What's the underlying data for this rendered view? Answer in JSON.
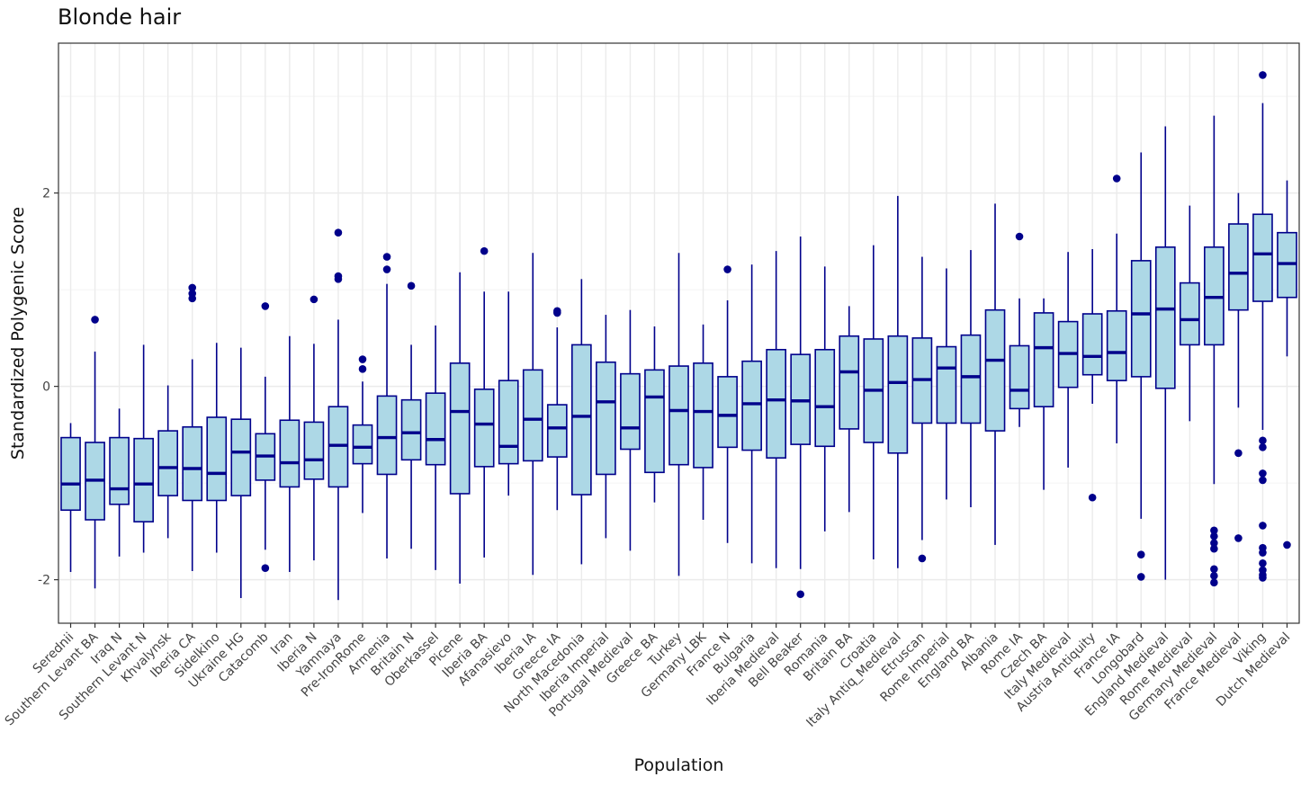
{
  "chart_data": {
    "type": "boxplot",
    "title": "Blonde hair",
    "xlabel": "Population",
    "ylabel": "Standardized Polygenic Score",
    "ylim": [
      -2.45,
      3.55
    ],
    "yticks": [
      -2,
      0,
      2
    ],
    "grid": true,
    "legend": "none",
    "colors": {
      "box_fill": "#add8e6",
      "box_stroke": "#00008b",
      "outlier": "#00008b",
      "grid_major": "#ebebeb",
      "grid_minor": "#f4f4f4",
      "panel_border": "#333333"
    },
    "populations": [
      {
        "name": "Seredniі",
        "min": -1.92,
        "q1": -1.28,
        "median": -1.01,
        "q3": -0.53,
        "max": -0.38,
        "outliers": []
      },
      {
        "name": "Southern Levant BA",
        "min": -2.09,
        "q1": -1.38,
        "median": -0.97,
        "q3": -0.58,
        "max": 0.36,
        "outliers": [
          0.69
        ]
      },
      {
        "name": "Iraq N",
        "min": -1.76,
        "q1": -1.22,
        "median": -1.06,
        "q3": -0.53,
        "max": -0.23,
        "outliers": []
      },
      {
        "name": "Southern Levant N",
        "min": -1.72,
        "q1": -1.4,
        "median": -1.01,
        "q3": -0.54,
        "max": 0.43,
        "outliers": []
      },
      {
        "name": "Khvalynsk",
        "min": -1.57,
        "q1": -1.13,
        "median": -0.84,
        "q3": -0.46,
        "max": 0.01,
        "outliers": []
      },
      {
        "name": "Iberia CA",
        "min": -1.91,
        "q1": -1.18,
        "median": -0.85,
        "q3": -0.42,
        "max": 0.28,
        "outliers": [
          0.91,
          0.96,
          1.02
        ]
      },
      {
        "name": "Sidelkino",
        "min": -1.72,
        "q1": -1.18,
        "median": -0.9,
        "q3": -0.32,
        "max": 0.45,
        "outliers": []
      },
      {
        "name": "Ukraine HG",
        "min": -2.19,
        "q1": -1.13,
        "median": -0.68,
        "q3": -0.34,
        "max": 0.4,
        "outliers": []
      },
      {
        "name": "Catacomb",
        "min": -1.69,
        "q1": -0.97,
        "median": -0.72,
        "q3": -0.49,
        "max": 0.1,
        "outliers": [
          -1.88,
          0.83
        ]
      },
      {
        "name": "Iran",
        "min": -1.92,
        "q1": -1.04,
        "median": -0.79,
        "q3": -0.35,
        "max": 0.52,
        "outliers": []
      },
      {
        "name": "Iberia N",
        "min": -1.8,
        "q1": -0.96,
        "median": -0.76,
        "q3": -0.37,
        "max": 0.44,
        "outliers": [
          0.9
        ]
      },
      {
        "name": "Yamnaya",
        "min": -2.21,
        "q1": -1.04,
        "median": -0.61,
        "q3": -0.21,
        "max": 0.69,
        "outliers": [
          1.11,
          1.14,
          1.59
        ]
      },
      {
        "name": "Pre-IronRome",
        "min": -1.31,
        "q1": -0.8,
        "median": -0.63,
        "q3": -0.4,
        "max": 0.05,
        "outliers": [
          0.18,
          0.28
        ]
      },
      {
        "name": "Armenia",
        "min": -1.78,
        "q1": -0.91,
        "median": -0.53,
        "q3": -0.1,
        "max": 1.06,
        "outliers": [
          1.21,
          1.34
        ]
      },
      {
        "name": "Britain N",
        "min": -1.68,
        "q1": -0.76,
        "median": -0.48,
        "q3": -0.14,
        "max": 0.43,
        "outliers": [
          1.04
        ]
      },
      {
        "name": "Oberkassel",
        "min": -1.9,
        "q1": -0.81,
        "median": -0.55,
        "q3": -0.07,
        "max": 0.63,
        "outliers": []
      },
      {
        "name": "Picene",
        "min": -2.04,
        "q1": -1.11,
        "median": -0.26,
        "q3": 0.24,
        "max": 1.18,
        "outliers": []
      },
      {
        "name": "Iberia BA",
        "min": -1.77,
        "q1": -0.83,
        "median": -0.39,
        "q3": -0.03,
        "max": 0.98,
        "outliers": [
          1.4
        ]
      },
      {
        "name": "Afanasievo",
        "min": -1.13,
        "q1": -0.8,
        "median": -0.62,
        "q3": 0.06,
        "max": 0.98,
        "outliers": []
      },
      {
        "name": "Iberia IA",
        "min": -1.95,
        "q1": -0.77,
        "median": -0.34,
        "q3": 0.17,
        "max": 1.38,
        "outliers": []
      },
      {
        "name": "Greece IA",
        "min": -1.28,
        "q1": -0.73,
        "median": -0.43,
        "q3": -0.19,
        "max": 0.61,
        "outliers": [
          0.76,
          0.78
        ]
      },
      {
        "name": "North Macedonia",
        "min": -1.84,
        "q1": -1.12,
        "median": -0.31,
        "q3": 0.43,
        "max": 1.11,
        "outliers": []
      },
      {
        "name": "Iberia Imperial",
        "min": -1.57,
        "q1": -0.91,
        "median": -0.16,
        "q3": 0.25,
        "max": 0.74,
        "outliers": []
      },
      {
        "name": "Portugal Medieval",
        "min": -1.7,
        "q1": -0.65,
        "median": -0.43,
        "q3": 0.13,
        "max": 0.79,
        "outliers": []
      },
      {
        "name": "Greece BA",
        "min": -1.2,
        "q1": -0.89,
        "median": -0.11,
        "q3": 0.17,
        "max": 0.62,
        "outliers": []
      },
      {
        "name": "Turkey",
        "min": -1.96,
        "q1": -0.81,
        "median": -0.25,
        "q3": 0.21,
        "max": 1.38,
        "outliers": []
      },
      {
        "name": "Germany LBK",
        "min": -1.38,
        "q1": -0.84,
        "median": -0.26,
        "q3": 0.24,
        "max": 0.64,
        "outliers": []
      },
      {
        "name": "France N",
        "min": -1.62,
        "q1": -0.63,
        "median": -0.3,
        "q3": 0.1,
        "max": 0.89,
        "outliers": [
          1.21
        ]
      },
      {
        "name": "Bulgaria",
        "min": -1.83,
        "q1": -0.66,
        "median": -0.18,
        "q3": 0.26,
        "max": 1.26,
        "outliers": []
      },
      {
        "name": "Iberia Medieval",
        "min": -1.88,
        "q1": -0.74,
        "median": -0.14,
        "q3": 0.38,
        "max": 1.4,
        "outliers": []
      },
      {
        "name": "Bell Beaker",
        "min": -1.89,
        "q1": -0.6,
        "median": -0.15,
        "q3": 0.33,
        "max": 1.55,
        "outliers": [
          -2.15
        ]
      },
      {
        "name": "Romania",
        "min": -1.5,
        "q1": -0.62,
        "median": -0.21,
        "q3": 0.38,
        "max": 1.24,
        "outliers": []
      },
      {
        "name": "Britain BA",
        "min": -1.3,
        "q1": -0.44,
        "median": 0.15,
        "q3": 0.52,
        "max": 0.83,
        "outliers": []
      },
      {
        "name": "Croatia",
        "min": -1.79,
        "q1": -0.58,
        "median": -0.04,
        "q3": 0.49,
        "max": 1.46,
        "outliers": []
      },
      {
        "name": "Italy Antiq_Medieval",
        "min": -1.88,
        "q1": -0.69,
        "median": 0.04,
        "q3": 0.52,
        "max": 1.97,
        "outliers": []
      },
      {
        "name": "Etruscan",
        "min": -1.59,
        "q1": -0.38,
        "median": 0.07,
        "q3": 0.5,
        "max": 1.34,
        "outliers": [
          -1.78
        ]
      },
      {
        "name": "Rome Imperial",
        "min": -1.17,
        "q1": -0.38,
        "median": 0.19,
        "q3": 0.41,
        "max": 1.22,
        "outliers": []
      },
      {
        "name": "England BA",
        "min": -1.25,
        "q1": -0.38,
        "median": 0.1,
        "q3": 0.53,
        "max": 1.41,
        "outliers": []
      },
      {
        "name": "Albania",
        "min": -1.64,
        "q1": -0.46,
        "median": 0.27,
        "q3": 0.79,
        "max": 1.89,
        "outliers": []
      },
      {
        "name": "Rome IA",
        "min": -0.42,
        "q1": -0.23,
        "median": -0.04,
        "q3": 0.42,
        "max": 0.91,
        "outliers": [
          1.55
        ]
      },
      {
        "name": "Czech BA",
        "min": -1.07,
        "q1": -0.21,
        "median": 0.4,
        "q3": 0.76,
        "max": 0.91,
        "outliers": []
      },
      {
        "name": "Italy Medieval",
        "min": -0.84,
        "q1": -0.01,
        "median": 0.34,
        "q3": 0.67,
        "max": 1.39,
        "outliers": []
      },
      {
        "name": "Austria Antiquity",
        "min": -0.18,
        "q1": 0.12,
        "median": 0.31,
        "q3": 0.75,
        "max": 1.42,
        "outliers": [
          -1.15
        ]
      },
      {
        "name": "France IA",
        "min": -0.59,
        "q1": 0.06,
        "median": 0.35,
        "q3": 0.78,
        "max": 1.58,
        "outliers": [
          2.15
        ]
      },
      {
        "name": "Longobard",
        "min": -1.37,
        "q1": 0.1,
        "median": 0.75,
        "q3": 1.3,
        "max": 2.42,
        "outliers": [
          -1.74,
          -1.97
        ]
      },
      {
        "name": "England Medieval",
        "min": -2.0,
        "q1": -0.02,
        "median": 0.8,
        "q3": 1.44,
        "max": 2.69,
        "outliers": []
      },
      {
        "name": "Rome Medieval",
        "min": -0.36,
        "q1": 0.43,
        "median": 0.69,
        "q3": 1.07,
        "max": 1.87,
        "outliers": []
      },
      {
        "name": "Germany Medieval",
        "min": -1.01,
        "q1": 0.43,
        "median": 0.92,
        "q3": 1.44,
        "max": 2.8,
        "outliers": [
          -1.49,
          -1.55,
          -1.62,
          -1.68,
          -1.89,
          -1.96,
          -2.03
        ]
      },
      {
        "name": "France Medieval",
        "min": -0.22,
        "q1": 0.79,
        "median": 1.17,
        "q3": 1.68,
        "max": 2.0,
        "outliers": [
          -0.69,
          -1.57
        ]
      },
      {
        "name": "Viking",
        "min": -0.45,
        "q1": 0.88,
        "median": 1.37,
        "q3": 1.78,
        "max": 2.93,
        "outliers": [
          3.22,
          -0.56,
          -0.63,
          -0.9,
          -0.97,
          -1.44,
          -1.67,
          -1.72,
          -1.83,
          -1.9,
          -1.95,
          -1.98
        ]
      },
      {
        "name": "Dutch Medieval",
        "min": 0.31,
        "q1": 0.92,
        "median": 1.27,
        "q3": 1.59,
        "max": 2.13,
        "outliers": [
          -1.64
        ]
      }
    ]
  }
}
